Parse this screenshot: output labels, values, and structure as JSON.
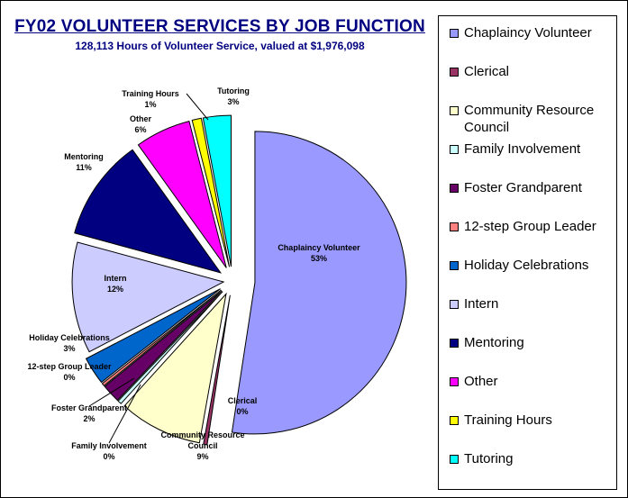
{
  "chart_data": {
    "type": "pie",
    "title": "FY02 VOLUNTEER SERVICES BY JOB FUNCTION",
    "subtitle": "128,113 Hours of Volunteer Service, valued at $1,976,098",
    "legend_position": "right",
    "slices": [
      {
        "name": "Chaplaincy Volunteer",
        "value": 53,
        "display_label": "53%",
        "color": "#9999ff"
      },
      {
        "name": "Clerical",
        "value": 0.4,
        "display_label": "0%",
        "color": "#993366"
      },
      {
        "name": "Community Resource Council",
        "value": 9,
        "display_label": "9%",
        "color": "#ffffcc"
      },
      {
        "name": "Family Involvement",
        "value": 0.4,
        "display_label": "0%",
        "color": "#ccffff"
      },
      {
        "name": "Foster Grandparent",
        "value": 2,
        "display_label": "2%",
        "color": "#660066"
      },
      {
        "name": "12-step Group Leader",
        "value": 0.3,
        "display_label": "0%",
        "color": "#ff8080"
      },
      {
        "name": "Holiday Celebrations",
        "value": 3,
        "display_label": "3%",
        "color": "#0066cc"
      },
      {
        "name": "Intern",
        "value": 12,
        "display_label": "12%",
        "color": "#ccccff"
      },
      {
        "name": "Mentoring",
        "value": 11,
        "display_label": "11%",
        "color": "#000080"
      },
      {
        "name": "Other",
        "value": 6,
        "display_label": "6%",
        "color": "#ff00ff"
      },
      {
        "name": "Training Hours",
        "value": 1,
        "display_label": "1%",
        "color": "#ffff00"
      },
      {
        "name": "Tutoring",
        "value": 3,
        "display_label": "3%",
        "color": "#00ffff"
      }
    ],
    "legend": [
      "Chaplaincy Volunteer",
      "Clerical",
      "Community Resource Council",
      "Family Involvement",
      "Foster Grandparent",
      "12-step Group Leader",
      "Holiday Celebrations",
      "Intern",
      "Mentoring",
      "Other",
      "Training Hours",
      "Tutoring"
    ]
  }
}
